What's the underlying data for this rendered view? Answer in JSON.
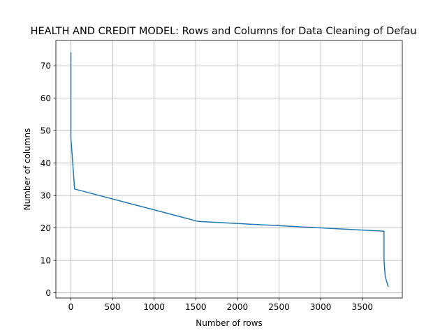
{
  "chart_data": {
    "type": "line",
    "title": "HEALTH AND CREDIT MODEL: Rows and Columns for Data Cleaning of Defau",
    "xlabel": "Number of rows",
    "ylabel": "Number of columns",
    "xlim": [
      -180,
      3980
    ],
    "ylim": [
      -1.6,
      77.8
    ],
    "x_ticks": [
      0,
      500,
      1000,
      1500,
      2000,
      2500,
      3000,
      3500
    ],
    "y_ticks": [
      0,
      10,
      20,
      30,
      40,
      50,
      60,
      70
    ],
    "grid": true,
    "line_color": "#1f77b4",
    "series": [
      {
        "x": [
          0,
          0,
          0,
          0,
          0,
          5,
          45,
          1530,
          3760,
          3760,
          3775,
          3810
        ],
        "y": [
          74,
          70,
          60,
          50,
          48,
          46,
          32,
          22,
          19,
          10,
          5,
          2
        ]
      }
    ]
  }
}
